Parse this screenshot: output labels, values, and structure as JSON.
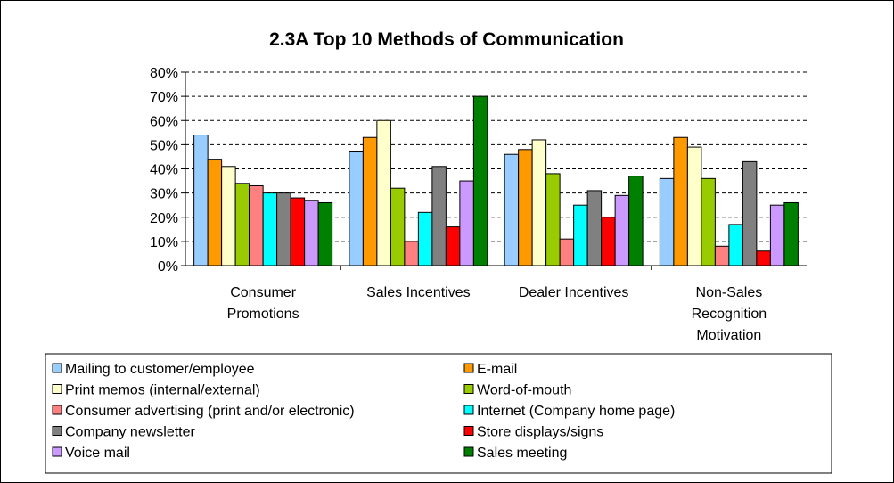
{
  "chart_data": {
    "type": "bar",
    "title": "2.3A Top 10 Methods of Communication",
    "xlabel": "",
    "ylabel": "",
    "ylim": [
      0,
      80
    ],
    "y_ticks": [
      "0%",
      "10%",
      "20%",
      "30%",
      "40%",
      "50%",
      "60%",
      "70%",
      "80%"
    ],
    "grid": "horizontal dashed",
    "legend_position": "bottom",
    "categories": [
      [
        "Consumer",
        "Promotions"
      ],
      [
        "Sales Incentives"
      ],
      [
        "Dealer Incentives"
      ],
      [
        "Non-Sales",
        "Recognition",
        "Motivation"
      ]
    ],
    "series": [
      {
        "name": "Mailing to customer/employee",
        "color": "#99ccff",
        "values": [
          54,
          47,
          46,
          36
        ]
      },
      {
        "name": "E-mail",
        "color": "#ff9900",
        "values": [
          44,
          53,
          48,
          53
        ]
      },
      {
        "name": "Print memos (internal/external)",
        "color": "#ffffcc",
        "values": [
          41,
          60,
          52,
          49
        ]
      },
      {
        "name": "Word-of-mouth",
        "color": "#99cc00",
        "values": [
          34,
          32,
          38,
          36
        ]
      },
      {
        "name": "Consumer advertising (print and/or electronic)",
        "color": "#ff8080",
        "values": [
          33,
          10,
          11,
          8
        ]
      },
      {
        "name": "Internet (Company home page)",
        "color": "#00ffff",
        "values": [
          30,
          22,
          25,
          17
        ]
      },
      {
        "name": "Company newsletter",
        "color": "#808080",
        "values": [
          30,
          41,
          31,
          43
        ]
      },
      {
        "name": "Store displays/signs",
        "color": "#ff0000",
        "values": [
          28,
          16,
          20,
          6
        ]
      },
      {
        "name": "Voice mail",
        "color": "#cc99ff",
        "values": [
          27,
          35,
          29,
          25
        ]
      },
      {
        "name": "Sales meeting",
        "color": "#008000",
        "values": [
          26,
          70,
          37,
          26
        ]
      }
    ]
  }
}
